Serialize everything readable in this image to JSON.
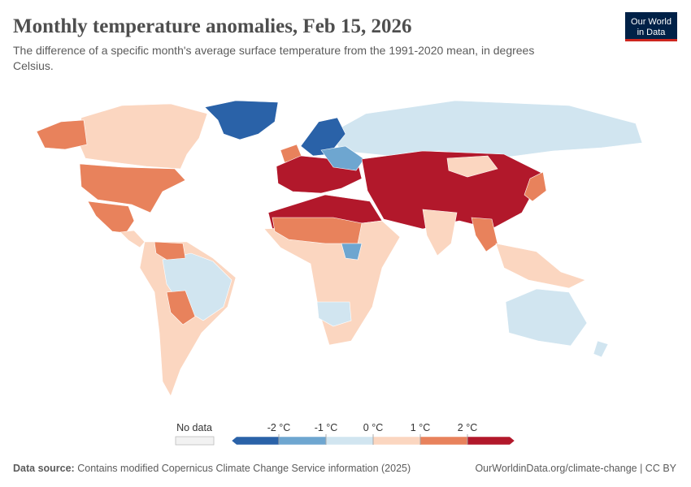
{
  "header": {
    "title": "Monthly temperature anomalies, Feb 15, 2026",
    "subtitle_line1": "The difference of a specific month's average surface temperature from the 1991-2020 mean, in degrees",
    "subtitle_line2": "Celsius.",
    "logo_line1": "Our World",
    "logo_line2": "in Data"
  },
  "legend": {
    "no_data": "No data",
    "ticks": [
      {
        "value": -2,
        "label": "-2 °C"
      },
      {
        "value": -1,
        "label": "-1 °C"
      },
      {
        "value": 0,
        "label": "0 °C"
      },
      {
        "value": 1,
        "label": "1 °C"
      },
      {
        "value": 2,
        "label": "2 °C"
      }
    ],
    "colors": [
      "#2a62a8",
      "#6ea6d0",
      "#d1e5f0",
      "#fbd6c0",
      "#e8825c",
      "#b2182b"
    ]
  },
  "footer": {
    "source_label": "Data source:",
    "source": "Contains modified Copernicus Climate Change Service information (2025)",
    "credit": "OurWorldinData.org/climate-change | CC BY"
  }
}
